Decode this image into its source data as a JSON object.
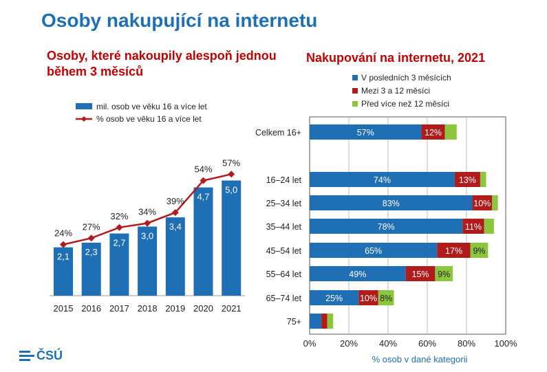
{
  "page_title": "Osoby nakupující na internetu",
  "logo_text": "ČSÚ",
  "colors": {
    "blue": "#1f6fb4",
    "red": "#b01c1c",
    "green": "#8cc63f",
    "title_red": "#c00000"
  },
  "chart_data": [
    {
      "type": "bar",
      "title": "Osoby, které nakoupily alespoň jednou během 3 měsíců",
      "categories": [
        "2015",
        "2016",
        "2017",
        "2018",
        "2019",
        "2020",
        "2021"
      ],
      "series": [
        {
          "name": "mil. osob ve věku 16 a více let",
          "type": "bar",
          "values": [
            2.1,
            2.3,
            2.7,
            3.0,
            3.4,
            4.7,
            5.0
          ],
          "labels": [
            "2,1",
            "2,3",
            "2,7",
            "3,0",
            "3,4",
            "4,7",
            "5,0"
          ]
        },
        {
          "name": "% osob ve věku 16 a více let",
          "type": "line",
          "values": [
            24,
            27,
            32,
            34,
            39,
            54,
            57
          ],
          "labels": [
            "24%",
            "27%",
            "32%",
            "34%",
            "39%",
            "54%",
            "57%"
          ]
        }
      ],
      "legend": "top"
    },
    {
      "type": "bar",
      "orientation": "horizontal",
      "stacked": true,
      "title": "Nakupování na internetu, 2021",
      "categories": [
        "Celkem 16+",
        "16–24 let",
        "25–34 let",
        "35–44 let",
        "45–54 let",
        "55–64 let",
        "65–74 let",
        "75+"
      ],
      "series": [
        {
          "name": "V posledních 3 měsících",
          "values": [
            57,
            74,
            83,
            78,
            65,
            49,
            25,
            6
          ],
          "labels": [
            "57%",
            "74%",
            "83%",
            "78%",
            "65%",
            "49%",
            "25%",
            ""
          ]
        },
        {
          "name": "Mezi 3 a 12 měsíci",
          "values": [
            12,
            13,
            10,
            11,
            17,
            15,
            10,
            3
          ],
          "labels": [
            "12%",
            "13%",
            "10%",
            "11%",
            "17%",
            "15%",
            "10%",
            ""
          ]
        },
        {
          "name": "Před více než 12 měsíci",
          "values": [
            6,
            3,
            3,
            5,
            9,
            9,
            8,
            3
          ],
          "labels": [
            "",
            "",
            "",
            "",
            "9%",
            "9%",
            "8%",
            ""
          ]
        }
      ],
      "xlabel": "% osob v dané kategorii",
      "xlim": [
        0,
        100
      ],
      "xticks": [
        "0%",
        "20%",
        "40%",
        "60%",
        "80%",
        "100%"
      ],
      "legend": "top-right"
    }
  ]
}
